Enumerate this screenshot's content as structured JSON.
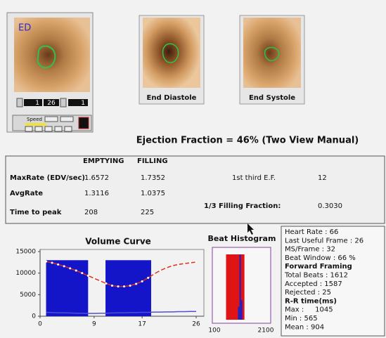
{
  "image_panel": {
    "label": "ED",
    "start": "1",
    "frame": "26",
    "end": "1",
    "speed": "Speed"
  },
  "views": [
    {
      "label": "End Diastole"
    },
    {
      "label": "End Systole"
    }
  ],
  "ejection_fraction": "Ejection Fraction = 46% (Two View Manual)",
  "table": {
    "headers": [
      "EMPTYING",
      "FILLING"
    ],
    "rows": [
      [
        "MaxRate (EDV/sec)",
        "1.6572",
        "1.7352"
      ],
      [
        "AvgRate",
        "1.3116",
        "1.0375"
      ],
      [
        "Time to peak",
        "208",
        "225"
      ]
    ]
  },
  "side_stats": [
    [
      "1st third E.F.",
      "12"
    ],
    [
      "1/3 Filling Fraction:",
      "0.3030"
    ]
  ],
  "info": [
    {
      "text": "Heart Rate : 66"
    },
    {
      "text": "Last Useful Frame : 26"
    },
    {
      "text": "MS/Frame : 32"
    },
    {
      "text": "Beat Window : 66 %"
    },
    {
      "text": "Forward Framing",
      "bold": true
    },
    {
      "text": "Total Beats : 1612"
    },
    {
      "text": "Accepted : 1587"
    },
    {
      "text": "Rejected : 25"
    },
    {
      "text": "R-R time(ms)",
      "bold": true
    },
    {
      "text": "Max :     1045"
    },
    {
      "text": "Min : 565"
    },
    {
      "text": "Mean : 904"
    }
  ],
  "chart_data": [
    {
      "type": "line",
      "title": "Volume Curve",
      "x": [
        1,
        2,
        3,
        4,
        5,
        6,
        7,
        8,
        9,
        10,
        11,
        12,
        13,
        14,
        15,
        16,
        17,
        18,
        19,
        20,
        21,
        22,
        23,
        24,
        25,
        26
      ],
      "series": [
        {
          "color": "#e03020",
          "markers": true,
          "values": [
            12700,
            12400,
            12000,
            11600,
            11100,
            10600,
            10000,
            9400,
            8800,
            8200,
            7600,
            7100,
            6900,
            6900,
            7100,
            7500,
            8100,
            8900,
            9800,
            10600,
            11200,
            11700,
            12000,
            12200,
            12400,
            12550
          ]
        },
        {
          "color": "#5050d0",
          "values": [
            900,
            850,
            800,
            800,
            750,
            700,
            700,
            650,
            650,
            700,
            700,
            750,
            800,
            800,
            850,
            850,
            900,
            900,
            950,
            950,
            1000,
            1000,
            1050,
            1050,
            1100,
            1100
          ]
        }
      ],
      "regions": [
        {
          "x": [
            1,
            8
          ],
          "y": 13000,
          "color": "#1414c8"
        },
        {
          "x": [
            10.9,
            18.5
          ],
          "y": 13000,
          "color": "#1414c8"
        }
      ],
      "xlim": [
        0,
        26
      ],
      "ylim": [
        0,
        15000
      ],
      "xticks": [
        0,
        9,
        17,
        26
      ],
      "yticks": [
        0,
        5000,
        10000,
        15000
      ]
    },
    {
      "type": "histogram",
      "title": "Beat Histogram",
      "xlim": [
        100,
        2100
      ],
      "xticks": [
        100,
        2100
      ],
      "window": [
        570,
        1200
      ],
      "window_color": "#e01414",
      "bins": [
        980,
        1030,
        1080,
        1130
      ],
      "values": [
        20,
        100,
        30
      ],
      "ylim": [
        0,
        100
      ],
      "color": "#2020c8"
    }
  ]
}
